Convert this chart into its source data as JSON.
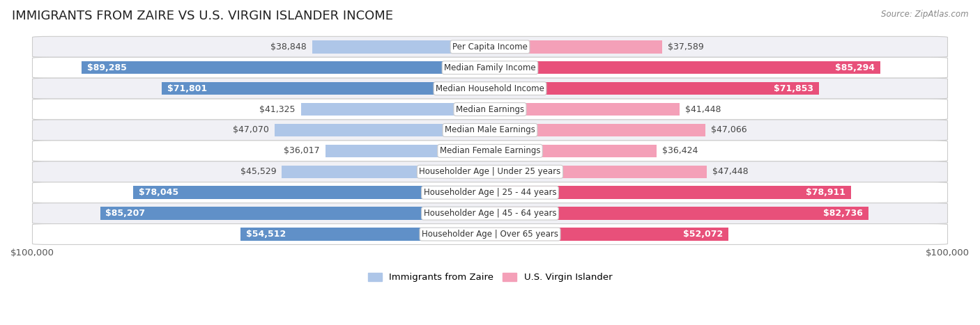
{
  "title": "IMMIGRANTS FROM ZAIRE VS U.S. VIRGIN ISLANDER INCOME",
  "source": "Source: ZipAtlas.com",
  "categories": [
    "Per Capita Income",
    "Median Family Income",
    "Median Household Income",
    "Median Earnings",
    "Median Male Earnings",
    "Median Female Earnings",
    "Householder Age | Under 25 years",
    "Householder Age | 25 - 44 years",
    "Householder Age | 45 - 64 years",
    "Householder Age | Over 65 years"
  ],
  "zaire_values": [
    38848,
    89285,
    71801,
    41325,
    47070,
    36017,
    45529,
    78045,
    85207,
    54512
  ],
  "virgin_values": [
    37589,
    85294,
    71853,
    41448,
    47066,
    36424,
    47448,
    78911,
    82736,
    52072
  ],
  "zaire_labels": [
    "$38,848",
    "$89,285",
    "$71,801",
    "$41,325",
    "$47,070",
    "$36,017",
    "$45,529",
    "$78,045",
    "$85,207",
    "$54,512"
  ],
  "virgin_labels": [
    "$37,589",
    "$85,294",
    "$71,853",
    "$41,448",
    "$47,066",
    "$36,424",
    "$47,448",
    "$78,911",
    "$82,736",
    "$52,072"
  ],
  "zaire_color_light": "#aec6e8",
  "zaire_color_dark": "#6090c8",
  "virgin_color_light": "#f4a0b8",
  "virgin_color_dark": "#e8507a",
  "zaire_label": "Immigrants from Zaire",
  "virgin_label": "U.S. Virgin Islander",
  "max_value": 100000,
  "xlabel_left": "$100,000",
  "xlabel_right": "$100,000",
  "bg_color": "#ffffff",
  "row_colors": [
    "#f0f0f5",
    "#ffffff"
  ],
  "bar_height": 0.62,
  "title_fontsize": 13,
  "label_fontsize": 9,
  "category_fontsize": 8.5,
  "source_fontsize": 8.5,
  "inside_threshold": 0.5
}
